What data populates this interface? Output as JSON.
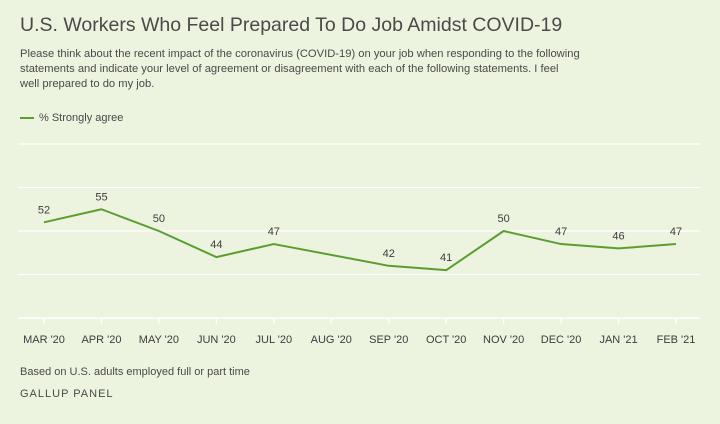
{
  "title": "U.S. Workers Who Feel Prepared To Do Job Amidst COVID-19",
  "subtitle": "Please think about the recent impact of the coronavirus (COVID-19) on your job when responding to the following statements and indicate your level of agreement or disagreement with each of the following statements. I feel well prepared to do my job.",
  "note": "Based on U.S. adults employed full or part time",
  "source": "GALLUP PANEL",
  "colors": {
    "line": "#5a9e32",
    "grid": "#ffffff"
  },
  "chart_data": {
    "type": "line",
    "x": [
      "MAR '20",
      "APR '20",
      "MAY '20",
      "JUN '20",
      "JUL '20",
      "AUG '20",
      "SEP '20",
      "OCT '20",
      "NOV '20",
      "DEC '20",
      "JAN '21",
      "FEB '21"
    ],
    "series": [
      {
        "name": "% Strongly agree",
        "values": [
          52,
          55,
          50,
          44,
          47,
          null,
          42,
          41,
          50,
          47,
          46,
          47
        ]
      }
    ],
    "ylim": [
      30,
      70
    ],
    "grid": true,
    "legend": "top-left"
  }
}
